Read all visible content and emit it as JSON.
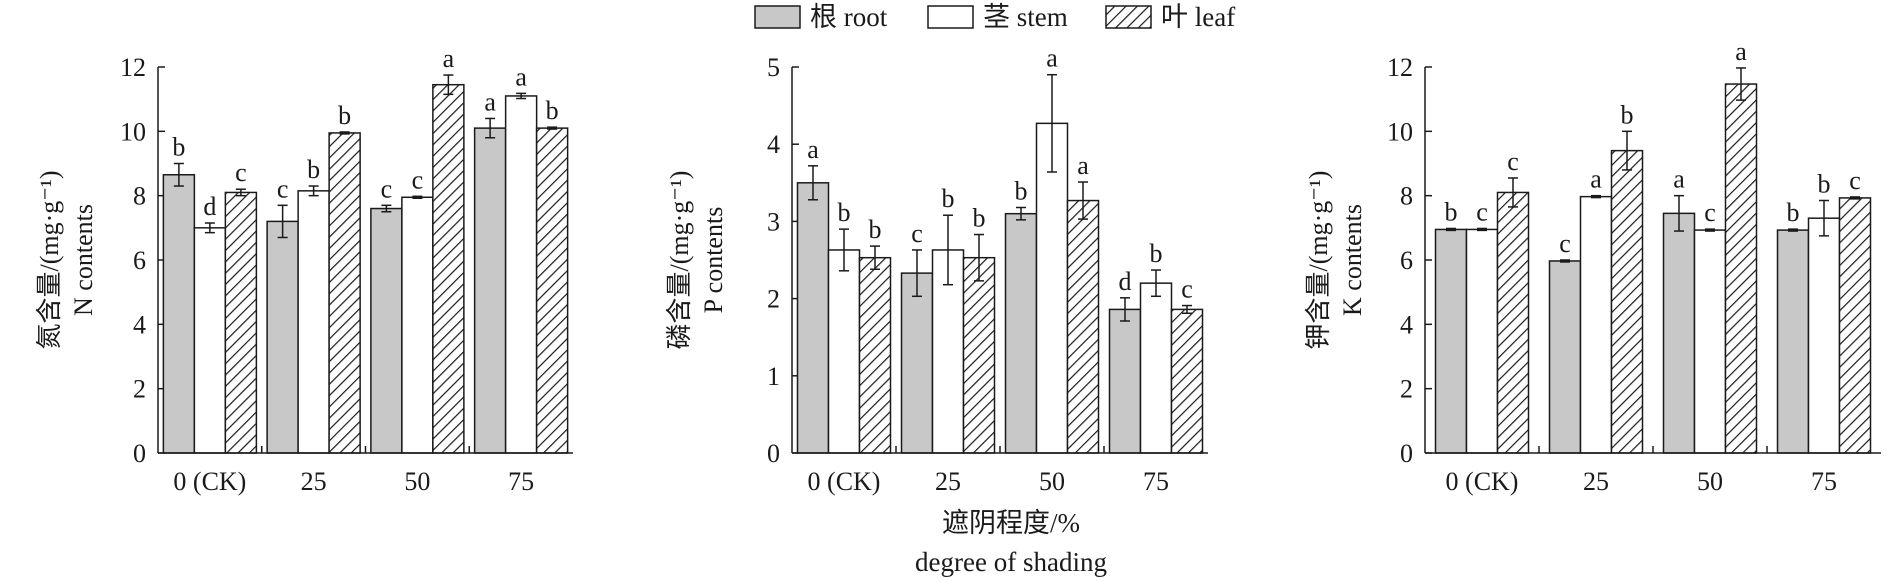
{
  "legend": {
    "items": [
      {
        "name": "根 root",
        "fill": "#c8c8c8",
        "pattern": "solid"
      },
      {
        "name": "茎 stem",
        "fill": "#ffffff",
        "pattern": "solid"
      },
      {
        "name": "叶 leaf",
        "fill": "#ffffff",
        "pattern": "hatch"
      }
    ]
  },
  "shared_xlabel_cn": "遮阴程度/%",
  "shared_xlabel_en": "degree of shading",
  "chart_data": [
    {
      "type": "bar",
      "categories": [
        "0 (CK)",
        "25",
        "50",
        "75"
      ],
      "ylabel_cn": "氮含量/(mg·g⁻¹)",
      "ylabel_en": "N contents",
      "ylim": [
        0,
        12
      ],
      "yticks": [
        0,
        2,
        4,
        6,
        8,
        10,
        12
      ],
      "series": [
        {
          "name": "根 root",
          "values": [
            8.65,
            7.2,
            7.6,
            10.1
          ],
          "errors": [
            0.35,
            0.5,
            0.1,
            0.3
          ],
          "letters": [
            "b",
            "c",
            "c",
            "a"
          ]
        },
        {
          "name": "茎 stem",
          "values": [
            7.0,
            8.15,
            7.95,
            11.1
          ],
          "errors": [
            0.15,
            0.15,
            0.03,
            0.08
          ],
          "letters": [
            "d",
            "b",
            "c",
            "a"
          ]
        },
        {
          "name": "叶 leaf",
          "values": [
            8.1,
            9.95,
            11.45,
            10.1
          ],
          "errors": [
            0.1,
            0.03,
            0.3,
            0.03
          ],
          "letters": [
            "c",
            "b",
            "a",
            "b"
          ]
        }
      ]
    },
    {
      "type": "bar",
      "categories": [
        "0 (CK)",
        "25",
        "50",
        "75"
      ],
      "ylabel_cn": "磷含量/(mg·g⁻¹)",
      "ylabel_en": "P contents",
      "ylim": [
        0,
        5
      ],
      "yticks": [
        0,
        1,
        2,
        3,
        4,
        5
      ],
      "series": [
        {
          "name": "根 root",
          "values": [
            3.5,
            2.33,
            3.1,
            1.86
          ],
          "errors": [
            0.22,
            0.3,
            0.08,
            0.15
          ],
          "letters": [
            "a",
            "c",
            "b",
            "d"
          ]
        },
        {
          "name": "茎 stem",
          "values": [
            2.63,
            2.63,
            4.27,
            2.2
          ],
          "errors": [
            0.27,
            0.45,
            0.63,
            0.17
          ],
          "letters": [
            "b",
            "b",
            "a",
            "b"
          ]
        },
        {
          "name": "叶 leaf",
          "values": [
            2.53,
            2.53,
            3.27,
            1.86
          ],
          "errors": [
            0.15,
            0.3,
            0.24,
            0.05
          ],
          "letters": [
            "b",
            "b",
            "a",
            "c"
          ]
        }
      ]
    },
    {
      "type": "bar",
      "categories": [
        "0 (CK)",
        "25",
        "50",
        "75"
      ],
      "ylabel_cn": "钾含量/(mg·g⁻¹)",
      "ylabel_en": "K contents",
      "ylim": [
        0,
        12
      ],
      "yticks": [
        0,
        2,
        4,
        6,
        8,
        10,
        12
      ],
      "series": [
        {
          "name": "根 root",
          "values": [
            6.95,
            5.97,
            7.45,
            6.93
          ],
          "errors": [
            0.03,
            0.03,
            0.55,
            0.03
          ],
          "letters": [
            "b",
            "c",
            "a",
            "b"
          ]
        },
        {
          "name": "茎 stem",
          "values": [
            6.95,
            7.97,
            6.93,
            7.3
          ],
          "errors": [
            0.03,
            0.03,
            0.03,
            0.55
          ],
          "letters": [
            "c",
            "a",
            "c",
            "b"
          ]
        },
        {
          "name": "叶 leaf",
          "values": [
            8.1,
            9.4,
            11.47,
            7.93
          ],
          "errors": [
            0.45,
            0.6,
            0.5,
            0.03
          ],
          "letters": [
            "c",
            "b",
            "a",
            "c"
          ]
        }
      ]
    }
  ]
}
